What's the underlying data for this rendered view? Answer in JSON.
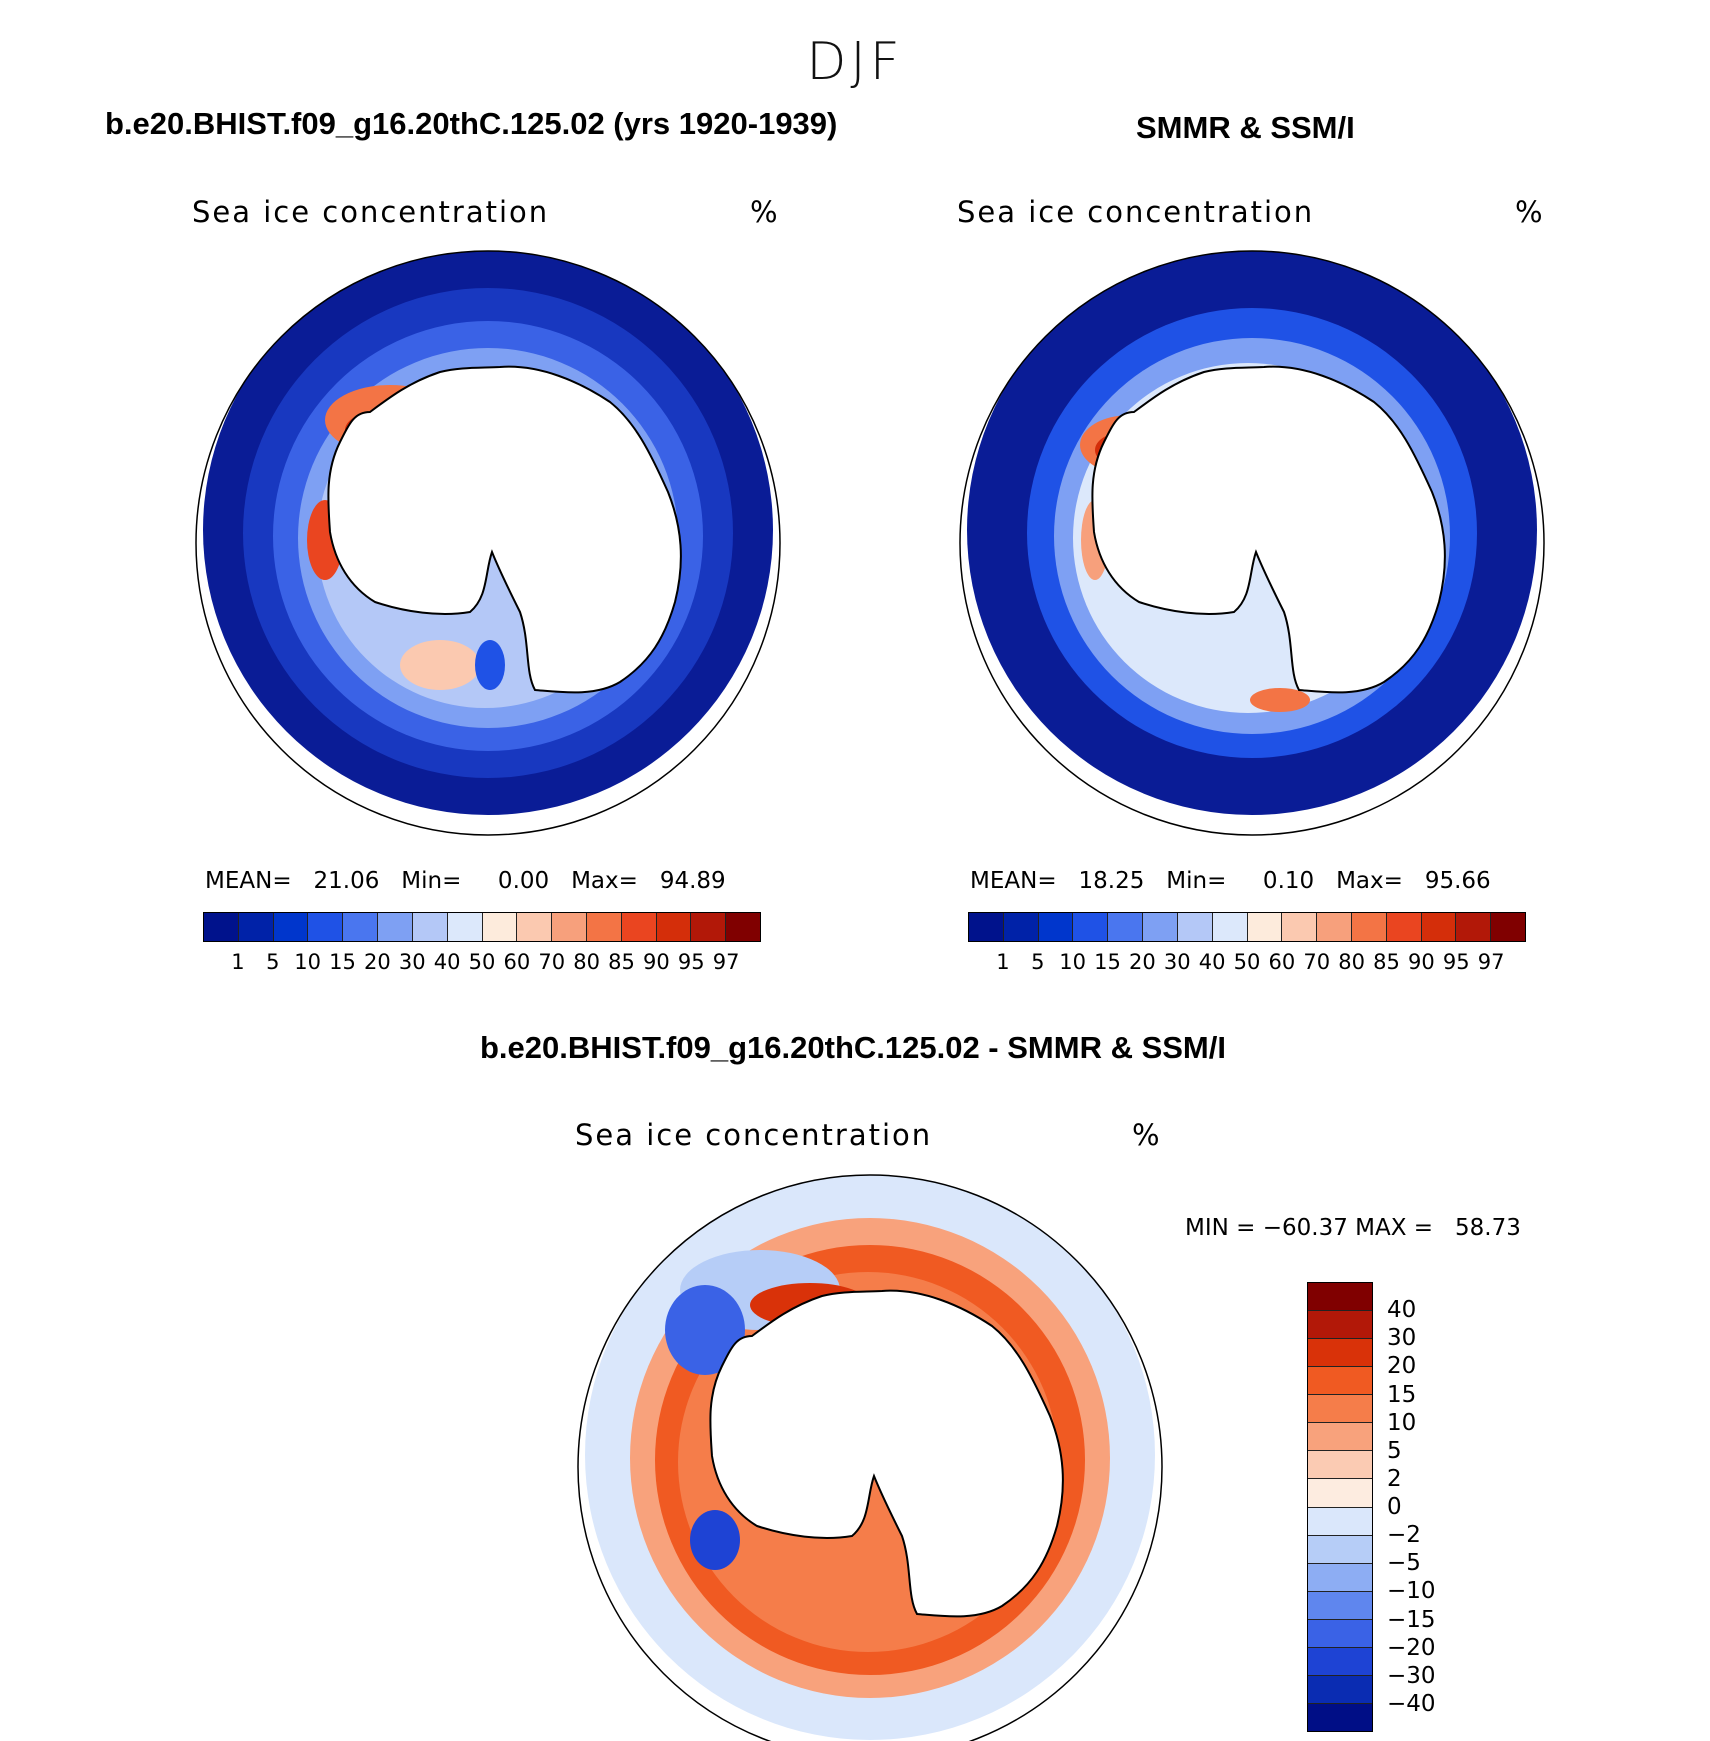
{
  "season": "DJF",
  "panels": [
    {
      "title": "b.e20.BHIST.f09_g16.20thC.125.02 (yrs 1920-1939)",
      "variable": "Sea ice concentration",
      "unit": "%",
      "stats": "MEAN=   21.06   Min=     0.00   Max=   94.89"
    },
    {
      "title": "SMMR & SSM/I",
      "variable": "Sea ice concentration",
      "unit": "%",
      "stats": "MEAN=   18.25   Min=     0.10   Max=   95.66"
    }
  ],
  "diff_panel": {
    "title": "b.e20.BHIST.f09_g16.20thC.125.02 - SMMR & SSM/I",
    "variable": "Sea ice concentration",
    "unit": "%",
    "stats": "MIN = −60.37 MAX =   58.73"
  },
  "colorbar": {
    "colors": [
      "#00128c",
      "#0022a8",
      "#0036cc",
      "#1f52e6",
      "#4a76ef",
      "#7ea0f3",
      "#b4c8f7",
      "#dce8fb",
      "#fdebdc",
      "#fbc9b0",
      "#f7a07c",
      "#f37445",
      "#ea4520",
      "#d42e0a",
      "#b21808",
      "#800000"
    ],
    "labels": [
      "1",
      "5",
      "10",
      "15",
      "20",
      "30",
      "40",
      "50",
      "60",
      "70",
      "80",
      "85",
      "90",
      "95",
      "97"
    ]
  },
  "diff_colorbar": {
    "colors": [
      "#800000",
      "#b21808",
      "#d93209",
      "#f05a22",
      "#f57d4a",
      "#f8a27c",
      "#fbcbb3",
      "#fdece0",
      "#dae7fb",
      "#b6cdf7",
      "#8dadf3",
      "#5f86ee",
      "#3a62e6",
      "#1e43d4",
      "#0a2cb2",
      "#000e86"
    ],
    "labels": [
      "40",
      "30",
      "20",
      "15",
      "10",
      "5",
      "2",
      "0",
      "−2",
      "−5",
      "−10",
      "−15",
      "−20",
      "−30",
      "−40"
    ]
  }
}
